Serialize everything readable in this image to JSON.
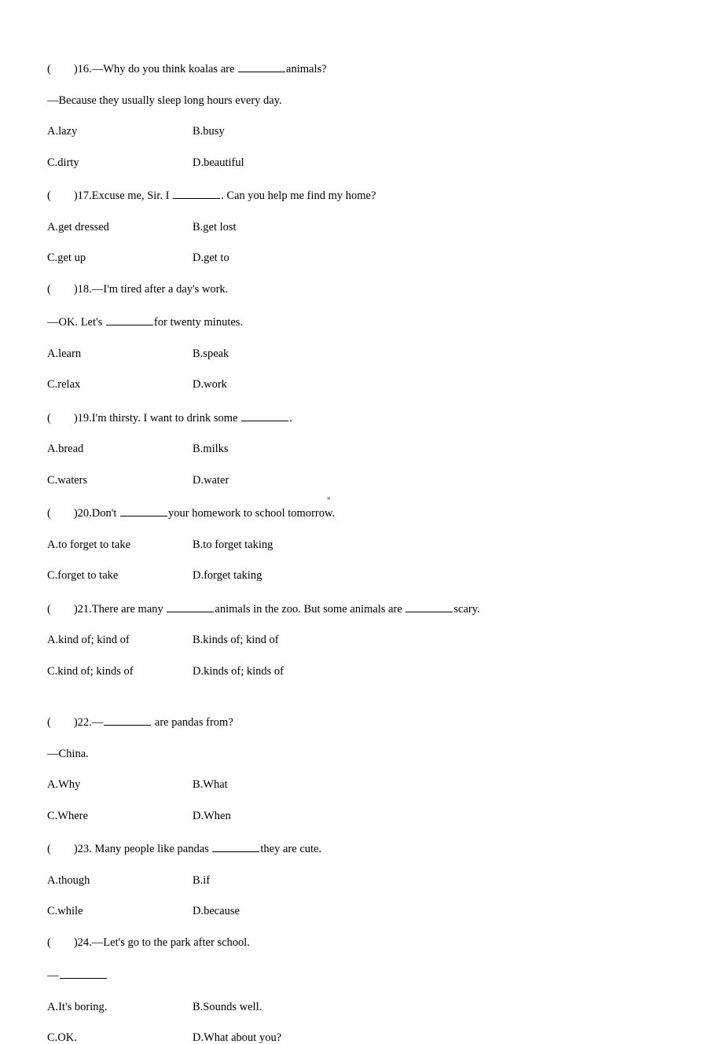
{
  "questions": [
    {
      "num": "16",
      "prompt_pre": "(　　)16.—Why do you think koalas are ",
      "prompt_post": "animals?",
      "line2": "—Because they usually sleep long hours every day.",
      "a": "A.lazy",
      "b": "B.busy",
      "c": "C.dirty",
      "d": "D.beautiful"
    },
    {
      "num": "17",
      "prompt_pre": "(　　)17.Excuse me, Sir. I ",
      "prompt_post": ". Can you help me find my home?",
      "a": "A.get dressed",
      "b": "B.get lost",
      "c": "C.get up",
      "d": "D.get to"
    },
    {
      "num": "18",
      "prompt_pre": "(　　)18.—I'm tired after a day's work.",
      "line2_pre": "—OK. Let's ",
      "line2_post": "for twenty minutes.",
      "a": "A.learn",
      "b": "B.speak",
      "c": "C.relax",
      "d": "D.work"
    },
    {
      "num": "19",
      "prompt_pre": "(　　)19.I'm thirsty. I want to drink some ",
      "prompt_post": ".",
      "a": "A.bread",
      "b": "B.milks",
      "c": "C.waters",
      "d": "D.water"
    },
    {
      "num": "20",
      "prompt_pre": "(　　)20.Don't ",
      "prompt_post": "your homework to school tomorrow.",
      "a": "A.to forget to take",
      "b": "B.to forget taking",
      "c": "C.forget to take",
      "d": "D.forget taking"
    },
    {
      "num": "21",
      "prompt_pre": "(　　)21.There are many ",
      "prompt_mid": "animals in the zoo. But some animals are ",
      "prompt_post": "scary.",
      "a": "A.kind of; kind of",
      "b": "B.kinds of; kind of",
      "c": "C.kind of; kinds of",
      "d": "D.kinds of; kinds of"
    },
    {
      "num": "22",
      "prompt_pre": "(　　)22.—",
      "prompt_post": " are pandas from?",
      "line2": "—China.",
      "a": "A.Why",
      "b": "B.What",
      "c": "C.Where",
      "d": "D.When"
    },
    {
      "num": "23",
      "prompt_pre": "(　　)23. Many people like pandas ",
      "prompt_post": "they are cute.",
      "a": "A.though",
      "b": "B.if",
      "c": "C.while",
      "d": "D.because"
    },
    {
      "num": "24",
      "prompt_pre": "(　　)24.—Let's go to the park after school.",
      "line2_pre": "—",
      "a": "A.It's boring.",
      "b": "B.Sounds well.",
      "c": "C.OK.",
      "d": "D.What about you?"
    }
  ]
}
